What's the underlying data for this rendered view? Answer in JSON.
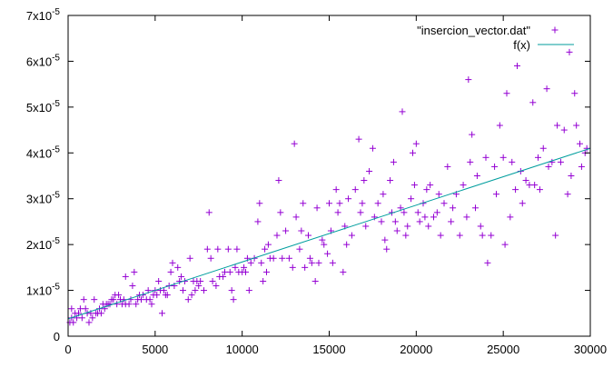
{
  "chart_data": {
    "type": "scatter",
    "title": "",
    "xlabel": "",
    "ylabel": "",
    "xlim": [
      0,
      30000
    ],
    "ylim": [
      0,
      7e-05
    ],
    "grid": false,
    "legend_position": "top-right",
    "x_ticks": [
      0,
      5000,
      10000,
      15000,
      20000,
      25000,
      30000
    ],
    "x_tick_labels": [
      "0",
      "5000",
      "10000",
      "15000",
      "20000",
      "25000",
      "30000"
    ],
    "y_ticks": [
      0,
      1e-05,
      2e-05,
      3e-05,
      4e-05,
      5e-05,
      6e-05,
      7e-05
    ],
    "y_tick_labels": [
      {
        "mantissa": "0",
        "exponent": ""
      },
      {
        "mantissa": "1x10",
        "exponent": "-5"
      },
      {
        "mantissa": "2x10",
        "exponent": "-5"
      },
      {
        "mantissa": "3x10",
        "exponent": "-5"
      },
      {
        "mantissa": "4x10",
        "exponent": "-5"
      },
      {
        "mantissa": "5x10",
        "exponent": "-5"
      },
      {
        "mantissa": "6x10",
        "exponent": "-5"
      },
      {
        "mantissa": "7x10",
        "exponent": "-5"
      }
    ],
    "series": [
      {
        "name": "\"insercion_vector.dat\"",
        "type": "scatter",
        "marker": "plus",
        "color": "#9400d3",
        "points": [
          [
            100,
            3e-06
          ],
          [
            200,
            4e-06
          ],
          [
            200,
            6e-06
          ],
          [
            300,
            3e-06
          ],
          [
            400,
            5e-06
          ],
          [
            500,
            4e-06
          ],
          [
            600,
            5e-06
          ],
          [
            700,
            6e-06
          ],
          [
            800,
            4e-06
          ],
          [
            900,
            8e-06
          ],
          [
            1000,
            6e-06
          ],
          [
            1100,
            5e-06
          ],
          [
            1200,
            3e-06
          ],
          [
            1300,
            5e-06
          ],
          [
            1400,
            4e-06
          ],
          [
            1500,
            8e-06
          ],
          [
            1600,
            5e-06
          ],
          [
            1700,
            5e-06
          ],
          [
            1800,
            6e-06
          ],
          [
            1900,
            5e-06
          ],
          [
            2000,
            7e-06
          ],
          [
            2100,
            6e-06
          ],
          [
            2200,
            7e-06
          ],
          [
            2300,
            7e-06
          ],
          [
            2400,
            7e-06
          ],
          [
            2500,
            8e-06
          ],
          [
            2600,
            8e-06
          ],
          [
            2700,
            9e-06
          ],
          [
            2800,
            7e-06
          ],
          [
            2900,
            9e-06
          ],
          [
            3000,
            8e-06
          ],
          [
            3100,
            7e-06
          ],
          [
            3200,
            8e-06
          ],
          [
            3300,
            7e-06
          ],
          [
            3300,
            1.3e-05
          ],
          [
            3500,
            7e-06
          ],
          [
            3600,
            8e-06
          ],
          [
            3700,
            1.1e-05
          ],
          [
            3800,
            1.4e-05
          ],
          [
            3900,
            7e-06
          ],
          [
            4000,
            8e-06
          ],
          [
            4100,
            9e-06
          ],
          [
            4200,
            8e-06
          ],
          [
            4300,
            9e-06
          ],
          [
            4500,
            8e-06
          ],
          [
            4600,
            1e-05
          ],
          [
            4700,
            8e-06
          ],
          [
            4800,
            7e-06
          ],
          [
            4900,
            9e-06
          ],
          [
            5000,
            1e-05
          ],
          [
            5100,
            9e-06
          ],
          [
            5200,
            1.2e-05
          ],
          [
            5300,
            1e-05
          ],
          [
            5400,
            5e-06
          ],
          [
            5500,
            1e-05
          ],
          [
            5600,
            9e-06
          ],
          [
            5700,
            9e-06
          ],
          [
            5800,
            1.1e-05
          ],
          [
            5900,
            1.4e-05
          ],
          [
            6000,
            1.6e-05
          ],
          [
            6100,
            1.1e-05
          ],
          [
            6300,
            1.5e-05
          ],
          [
            6400,
            1.2e-05
          ],
          [
            6500,
            1.3e-05
          ],
          [
            6600,
            1e-05
          ],
          [
            6700,
            1.2e-05
          ],
          [
            6900,
            8e-06
          ],
          [
            7000,
            1.7e-05
          ],
          [
            7100,
            9e-06
          ],
          [
            7200,
            1.2e-05
          ],
          [
            7300,
            1e-05
          ],
          [
            7400,
            1.2e-05
          ],
          [
            7500,
            1.1e-05
          ],
          [
            7600,
            1.2e-05
          ],
          [
            7800,
            1e-05
          ],
          [
            8000,
            1.9e-05
          ],
          [
            8100,
            2.7e-05
          ],
          [
            8200,
            1.7e-05
          ],
          [
            8300,
            1.2e-05
          ],
          [
            8500,
            1.1e-05
          ],
          [
            8600,
            1.9e-05
          ],
          [
            8700,
            1.3e-05
          ],
          [
            8900,
            1.3e-05
          ],
          [
            9000,
            1.4e-05
          ],
          [
            9200,
            1.9e-05
          ],
          [
            9300,
            1.4e-05
          ],
          [
            9400,
            1e-05
          ],
          [
            9500,
            8e-06
          ],
          [
            9600,
            1.5e-05
          ],
          [
            9700,
            1.9e-05
          ],
          [
            9800,
            1.4e-05
          ],
          [
            10000,
            1.4e-05
          ],
          [
            10100,
            1.5e-05
          ],
          [
            10200,
            1.4e-05
          ],
          [
            10300,
            1.7e-05
          ],
          [
            10400,
            1e-05
          ],
          [
            10500,
            1.6e-05
          ],
          [
            10700,
            1.7e-05
          ],
          [
            10900,
            2.5e-05
          ],
          [
            11000,
            2.9e-05
          ],
          [
            11100,
            1.6e-05
          ],
          [
            11200,
            1.2e-05
          ],
          [
            11300,
            1.9e-05
          ],
          [
            11400,
            1.4e-05
          ],
          [
            11500,
            2e-05
          ],
          [
            11600,
            1.7e-05
          ],
          [
            11800,
            1.7e-05
          ],
          [
            12000,
            2.2e-05
          ],
          [
            12100,
            3.4e-05
          ],
          [
            12200,
            2.7e-05
          ],
          [
            12300,
            1.7e-05
          ],
          [
            12500,
            2.3e-05
          ],
          [
            12700,
            1.7e-05
          ],
          [
            12900,
            1.5e-05
          ],
          [
            13000,
            4.2e-05
          ],
          [
            13100,
            2.6e-05
          ],
          [
            13300,
            1.9e-05
          ],
          [
            13400,
            2.3e-05
          ],
          [
            13500,
            2.9e-05
          ],
          [
            13600,
            1.5e-05
          ],
          [
            13800,
            2.2e-05
          ],
          [
            13900,
            1.7e-05
          ],
          [
            14000,
            1.6e-05
          ],
          [
            14200,
            1.2e-05
          ],
          [
            14300,
            2.8e-05
          ],
          [
            14400,
            1.6e-05
          ],
          [
            14600,
            2.1e-05
          ],
          [
            14700,
            2e-05
          ],
          [
            14900,
            1.8e-05
          ],
          [
            15000,
            2.9e-05
          ],
          [
            15100,
            2.3e-05
          ],
          [
            15200,
            1.6e-05
          ],
          [
            15400,
            3.2e-05
          ],
          [
            15500,
            2.7e-05
          ],
          [
            15600,
            2.9e-05
          ],
          [
            15800,
            1.4e-05
          ],
          [
            15900,
            2.4e-05
          ],
          [
            16000,
            2e-05
          ],
          [
            16100,
            3e-05
          ],
          [
            16300,
            2.2e-05
          ],
          [
            16500,
            3.2e-05
          ],
          [
            16700,
            4.3e-05
          ],
          [
            16800,
            2.7e-05
          ],
          [
            16900,
            2.9e-05
          ],
          [
            17000,
            3.4e-05
          ],
          [
            17100,
            2.4e-05
          ],
          [
            17300,
            3.6e-05
          ],
          [
            17500,
            4.1e-05
          ],
          [
            17600,
            2.6e-05
          ],
          [
            17800,
            2.9e-05
          ],
          [
            18000,
            2.5e-05
          ],
          [
            18100,
            3.1e-05
          ],
          [
            18200,
            2.1e-05
          ],
          [
            18300,
            1.9e-05
          ],
          [
            18500,
            3.4e-05
          ],
          [
            18600,
            2.7e-05
          ],
          [
            18700,
            3.8e-05
          ],
          [
            18800,
            2.5e-05
          ],
          [
            18900,
            2.3e-05
          ],
          [
            19100,
            2.8e-05
          ],
          [
            19200,
            4.9e-05
          ],
          [
            19300,
            2.7e-05
          ],
          [
            19400,
            2.2e-05
          ],
          [
            19500,
            2.4e-05
          ],
          [
            19700,
            3e-05
          ],
          [
            19800,
            4e-05
          ],
          [
            19900,
            3.3e-05
          ],
          [
            20000,
            4.2e-05
          ],
          [
            20100,
            2.7e-05
          ],
          [
            20200,
            2.5e-05
          ],
          [
            20400,
            2.9e-05
          ],
          [
            20500,
            2.6e-05
          ],
          [
            20600,
            3.2e-05
          ],
          [
            20700,
            2.4e-05
          ],
          [
            20800,
            3.3e-05
          ],
          [
            21000,
            2.6e-05
          ],
          [
            21200,
            2.7e-05
          ],
          [
            21300,
            3.1e-05
          ],
          [
            21400,
            2.2e-05
          ],
          [
            21600,
            2.9e-05
          ],
          [
            21800,
            3.7e-05
          ],
          [
            22000,
            2.5e-05
          ],
          [
            22100,
            2.8e-05
          ],
          [
            22300,
            3.1e-05
          ],
          [
            22500,
            2.2e-05
          ],
          [
            22700,
            3.3e-05
          ],
          [
            22900,
            2.6e-05
          ],
          [
            23000,
            5.6e-05
          ],
          [
            23100,
            3.8e-05
          ],
          [
            23200,
            4.4e-05
          ],
          [
            23400,
            2.8e-05
          ],
          [
            23500,
            3.5e-05
          ],
          [
            23700,
            2.4e-05
          ],
          [
            23800,
            2.2e-05
          ],
          [
            24000,
            3.9e-05
          ],
          [
            24100,
            1.6e-05
          ],
          [
            24300,
            2.2e-05
          ],
          [
            24500,
            3.7e-05
          ],
          [
            24600,
            3.1e-05
          ],
          [
            24800,
            4.6e-05
          ],
          [
            25000,
            3.9e-05
          ],
          [
            25100,
            2e-05
          ],
          [
            25200,
            5.3e-05
          ],
          [
            25400,
            2.6e-05
          ],
          [
            25500,
            3.8e-05
          ],
          [
            25700,
            3.2e-05
          ],
          [
            25800,
            5.9e-05
          ],
          [
            26000,
            3.6e-05
          ],
          [
            26100,
            2.9e-05
          ],
          [
            26300,
            3.4e-05
          ],
          [
            26500,
            3.3e-05
          ],
          [
            26700,
            5.1e-05
          ],
          [
            26800,
            3.3e-05
          ],
          [
            27000,
            3.9e-05
          ],
          [
            27100,
            3.2e-05
          ],
          [
            27300,
            4.1e-05
          ],
          [
            27500,
            5.4e-05
          ],
          [
            27600,
            3.7e-05
          ],
          [
            27800,
            3.8e-05
          ],
          [
            28000,
            2.2e-05
          ],
          [
            28100,
            4.6e-05
          ],
          [
            28300,
            3.8e-05
          ],
          [
            28500,
            4.5e-05
          ],
          [
            28700,
            3.1e-05
          ],
          [
            28800,
            6.2e-05
          ],
          [
            28900,
            3.5e-05
          ],
          [
            29100,
            5.3e-05
          ],
          [
            29200,
            4.6e-05
          ],
          [
            29400,
            4.2e-05
          ],
          [
            29500,
            3.7e-05
          ],
          [
            29700,
            4e-05
          ],
          [
            29800,
            4.1e-05
          ]
        ]
      },
      {
        "name": "f(x)",
        "type": "line",
        "color": "#009e9e",
        "points": [
          [
            0,
            3.8e-06
          ],
          [
            30000,
            4.1e-05
          ]
        ]
      }
    ]
  }
}
